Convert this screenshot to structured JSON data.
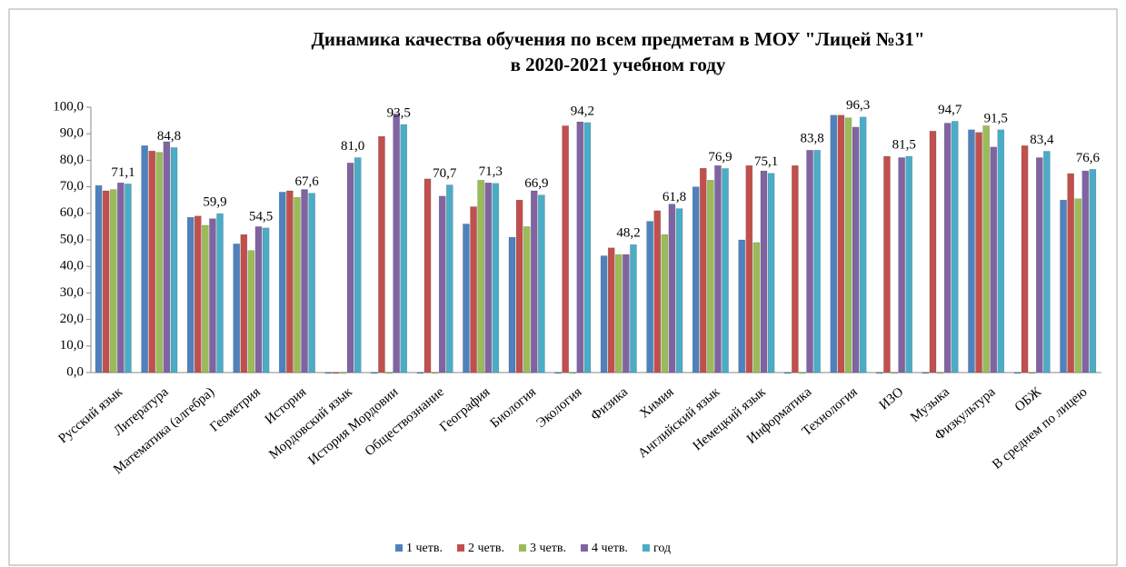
{
  "chart_data": {
    "type": "bar",
    "title": [
      "Динамика качества обучения по всем предметам в МОУ \"Лицей №31\"",
      "в 2020-2021 учебном году"
    ],
    "categories": [
      "Русский язык",
      "Литература",
      "Математика (алгебра)",
      "Геометрия",
      "История",
      "Мордовский язык",
      "История Мордовии",
      "Обществознание",
      "География",
      "Биология",
      "Экология",
      "Физика",
      "Химия",
      "Английский язык",
      "Немецкий язык",
      "Информатика",
      "Технология",
      "ИЗО",
      "Музыка",
      "Физкультура",
      "ОБЖ",
      "В среднем по лицею"
    ],
    "series": [
      {
        "name": "1 четв.",
        "color": "#4f81bd",
        "values": [
          70.5,
          85.5,
          58.5,
          48.5,
          68,
          0,
          0,
          0,
          56,
          51,
          0,
          44,
          57,
          70,
          50,
          0,
          97,
          0,
          0,
          91.5,
          0,
          65
        ]
      },
      {
        "name": "2 четв.",
        "color": "#c0504d",
        "values": [
          68.5,
          83.5,
          59,
          52,
          68.5,
          0,
          89,
          73,
          62.5,
          65,
          93,
          47,
          61,
          77,
          78,
          78,
          97,
          81.5,
          91,
          90.5,
          85.5,
          75
        ]
      },
      {
        "name": "3 четв.",
        "color": "#9bbb59",
        "values": [
          69,
          83,
          55.5,
          46,
          66,
          0,
          0,
          0,
          72.5,
          55,
          0,
          44.5,
          52,
          72.5,
          49,
          0,
          96,
          0,
          0,
          93,
          0,
          65.5
        ]
      },
      {
        "name": "4 четв.",
        "color": "#8064a2",
        "values": [
          71.5,
          87,
          58,
          55,
          69,
          79,
          97.5,
          66.5,
          71.5,
          68.5,
          94.5,
          44.5,
          63.5,
          78,
          76,
          83.8,
          92.5,
          81,
          94,
          85,
          81,
          76
        ]
      },
      {
        "name": "год",
        "color": "#4bacc6",
        "values": [
          71.1,
          84.8,
          59.9,
          54.5,
          67.6,
          81.0,
          93.5,
          70.7,
          71.3,
          66.9,
          94.2,
          48.2,
          61.8,
          76.9,
          75.1,
          83.8,
          96.3,
          81.5,
          94.7,
          91.5,
          83.4,
          76.6
        ],
        "value_labels": [
          "71,1",
          "84,8",
          "59,9",
          "54,5",
          "67,6",
          "81,0",
          "93,5",
          "70,7",
          "71,3",
          "66,9",
          "94,2",
          "48,2",
          "61,8",
          "76,9",
          "75,1",
          "83,8",
          "96,3",
          "81,5",
          "94,7",
          "91,5",
          "83,4",
          "76,6"
        ]
      }
    ],
    "ylim": [
      0,
      100
    ],
    "yticks": [
      {
        "value": 0,
        "label": "0,0"
      },
      {
        "value": 10,
        "label": "10,0"
      },
      {
        "value": 20,
        "label": "20,0"
      },
      {
        "value": 30,
        "label": "30,0"
      },
      {
        "value": 40,
        "label": "40,0"
      },
      {
        "value": 50,
        "label": "50,0"
      },
      {
        "value": 60,
        "label": "60,0"
      },
      {
        "value": 70,
        "label": "70,0"
      },
      {
        "value": 80,
        "label": "80,0"
      },
      {
        "value": 90,
        "label": "90,0"
      },
      {
        "value": 100,
        "label": "100,0"
      }
    ],
    "grid": false,
    "legend": "bottom"
  }
}
